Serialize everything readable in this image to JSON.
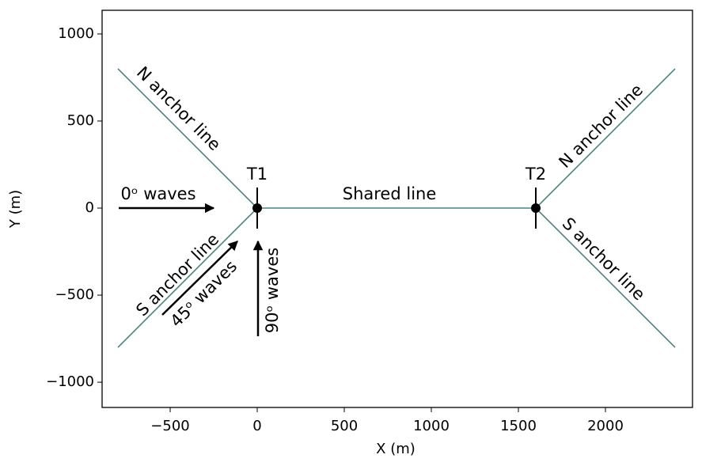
{
  "chart_data": {
    "type": "line",
    "x_label": "X (m)",
    "y_label": "Y (m)",
    "xlim": [
      -891,
      2500
    ],
    "ylim": [
      -1145,
      1136
    ],
    "xticks": [
      {
        "value": -500,
        "label": "−500"
      },
      0,
      500,
      1000,
      1500,
      2000
    ],
    "yticks": [
      {
        "value": -1000,
        "label": "−1000"
      },
      {
        "value": -500,
        "label": "−500"
      },
      0,
      500,
      1000
    ],
    "series": [
      {
        "color": "#4f8080",
        "x": [
          -800,
          0
        ],
        "y": [
          800,
          0
        ]
      },
      {
        "color": "#4f8080",
        "x": [
          -800,
          0
        ],
        "y": [
          -800,
          0
        ]
      },
      {
        "color": "#4f8080",
        "x": [
          0,
          1600
        ],
        "y": [
          0,
          0
        ]
      },
      {
        "color": "#4f8080",
        "x": [
          1600,
          2400
        ],
        "y": [
          0,
          800
        ]
      },
      {
        "color": "#4f8080",
        "x": [
          1600,
          2400
        ],
        "y": [
          0,
          -800
        ]
      }
    ],
    "turbines": [
      {
        "name": "T1",
        "x": 0,
        "y": 0
      },
      {
        "name": "T2",
        "x": 1600,
        "y": 0
      }
    ],
    "annotations": [
      "N anchor line",
      "S anchor line",
      "Shared line",
      "N anchor line",
      "S anchor line",
      "0ᵒ waves",
      "45ᵒ waves",
      "90ᵒ waves"
    ]
  }
}
